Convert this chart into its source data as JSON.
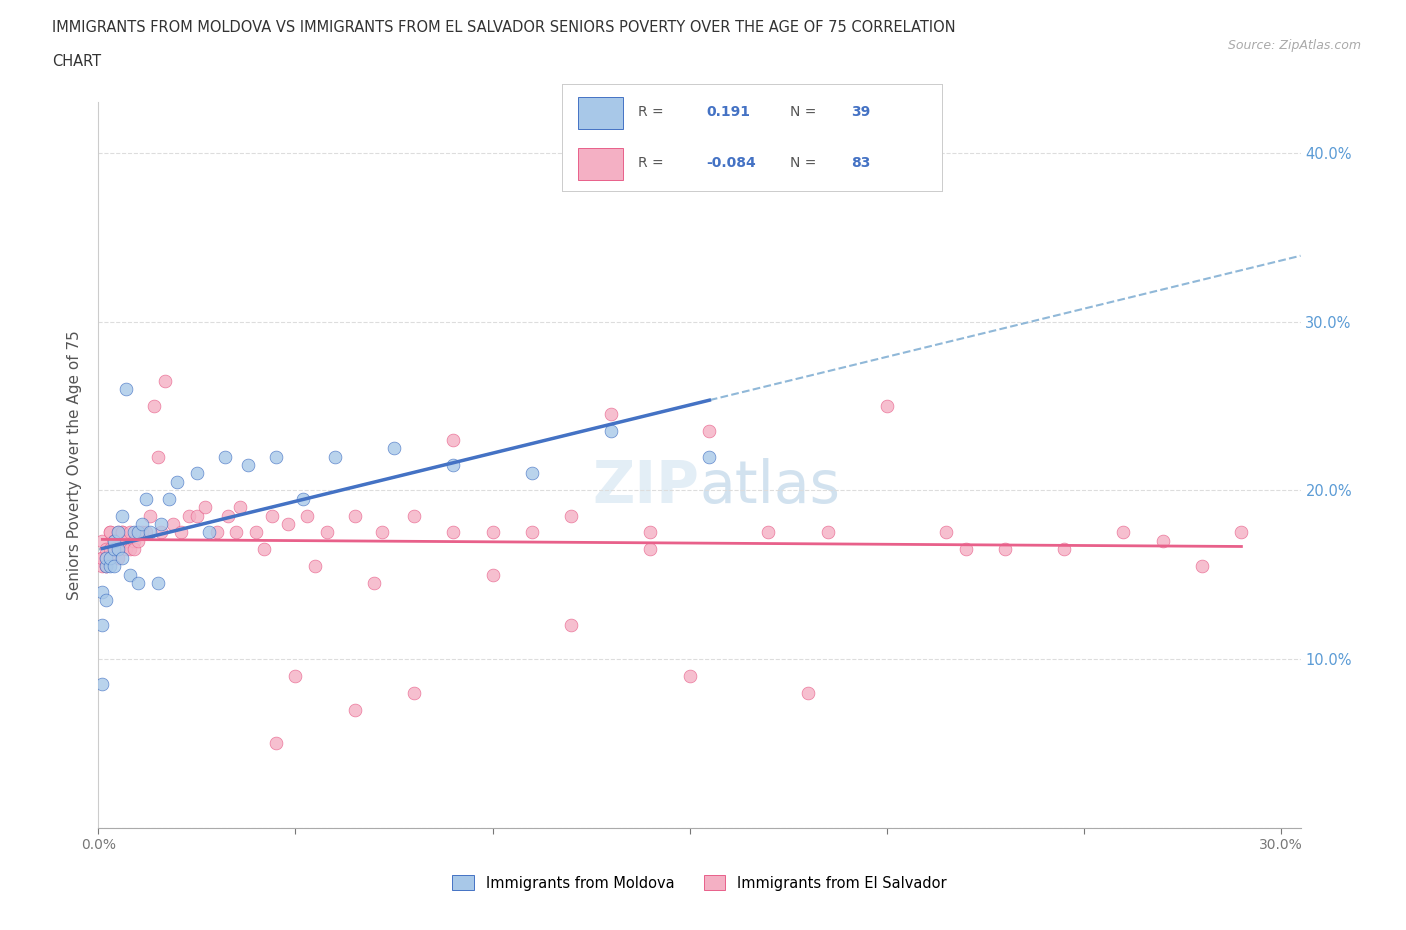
{
  "title_line1": "IMMIGRANTS FROM MOLDOVA VS IMMIGRANTS FROM EL SALVADOR SENIORS POVERTY OVER THE AGE OF 75 CORRELATION",
  "title_line2": "CHART",
  "source": "Source: ZipAtlas.com",
  "ylabel": "Seniors Poverty Over the Age of 75",
  "r_moldova": 0.191,
  "n_moldova": 39,
  "r_elsalvador": -0.084,
  "n_elsalvador": 83,
  "xlim": [
    0.0,
    0.305
  ],
  "ylim": [
    0.0,
    0.43
  ],
  "color_moldova": "#a8c8e8",
  "color_elsalvador": "#f4b0c4",
  "line_color_moldova": "#4472c4",
  "line_color_elsalvador": "#e8608a",
  "dashed_line_color": "#90b8d8",
  "moldova_x": [
    0.001,
    0.001,
    0.001,
    0.002,
    0.002,
    0.002,
    0.003,
    0.003,
    0.004,
    0.004,
    0.004,
    0.005,
    0.005,
    0.006,
    0.006,
    0.007,
    0.008,
    0.009,
    0.01,
    0.01,
    0.011,
    0.012,
    0.013,
    0.015,
    0.016,
    0.018,
    0.02,
    0.025,
    0.028,
    0.032,
    0.038,
    0.045,
    0.052,
    0.06,
    0.075,
    0.09,
    0.11,
    0.13,
    0.155
  ],
  "moldova_y": [
    0.12,
    0.085,
    0.14,
    0.155,
    0.16,
    0.135,
    0.155,
    0.16,
    0.165,
    0.155,
    0.17,
    0.175,
    0.165,
    0.185,
    0.16,
    0.26,
    0.15,
    0.175,
    0.145,
    0.175,
    0.18,
    0.195,
    0.175,
    0.145,
    0.18,
    0.195,
    0.205,
    0.21,
    0.175,
    0.22,
    0.215,
    0.22,
    0.195,
    0.22,
    0.225,
    0.215,
    0.21,
    0.235,
    0.22
  ],
  "elsalvador_x": [
    0.001,
    0.001,
    0.001,
    0.001,
    0.002,
    0.002,
    0.002,
    0.002,
    0.003,
    0.003,
    0.003,
    0.004,
    0.004,
    0.004,
    0.005,
    0.005,
    0.005,
    0.006,
    0.006,
    0.007,
    0.007,
    0.007,
    0.008,
    0.008,
    0.009,
    0.009,
    0.01,
    0.01,
    0.011,
    0.012,
    0.013,
    0.014,
    0.015,
    0.016,
    0.017,
    0.019,
    0.021,
    0.023,
    0.025,
    0.027,
    0.03,
    0.033,
    0.036,
    0.04,
    0.044,
    0.048,
    0.053,
    0.058,
    0.065,
    0.072,
    0.08,
    0.09,
    0.1,
    0.11,
    0.12,
    0.13,
    0.14,
    0.155,
    0.17,
    0.185,
    0.2,
    0.215,
    0.23,
    0.245,
    0.26,
    0.27,
    0.28,
    0.29,
    0.12,
    0.15,
    0.18,
    0.22,
    0.05,
    0.07,
    0.09,
    0.035,
    0.042,
    0.055,
    0.08,
    0.1,
    0.14,
    0.065,
    0.045
  ],
  "elsalvador_y": [
    0.16,
    0.155,
    0.17,
    0.16,
    0.155,
    0.165,
    0.16,
    0.155,
    0.175,
    0.175,
    0.165,
    0.17,
    0.165,
    0.17,
    0.175,
    0.165,
    0.16,
    0.175,
    0.175,
    0.17,
    0.165,
    0.17,
    0.175,
    0.165,
    0.17,
    0.165,
    0.175,
    0.17,
    0.175,
    0.175,
    0.185,
    0.25,
    0.22,
    0.175,
    0.265,
    0.18,
    0.175,
    0.185,
    0.185,
    0.19,
    0.175,
    0.185,
    0.19,
    0.175,
    0.185,
    0.18,
    0.185,
    0.175,
    0.185,
    0.175,
    0.185,
    0.23,
    0.175,
    0.175,
    0.185,
    0.245,
    0.175,
    0.235,
    0.175,
    0.175,
    0.25,
    0.175,
    0.165,
    0.165,
    0.175,
    0.17,
    0.155,
    0.175,
    0.12,
    0.09,
    0.08,
    0.165,
    0.09,
    0.145,
    0.175,
    0.175,
    0.165,
    0.155,
    0.08,
    0.15,
    0.165,
    0.07,
    0.05
  ],
  "xtick_labels_show": [
    true,
    false,
    false,
    false,
    false,
    false,
    true
  ],
  "xtick_vals": [
    0.0,
    0.05,
    0.1,
    0.15,
    0.2,
    0.25,
    0.3
  ],
  "ytick_vals": [
    0.0,
    0.1,
    0.2,
    0.3,
    0.4
  ],
  "bg_color": "#ffffff",
  "grid_color": "#dddddd",
  "title_color": "#333333",
  "ylabel_color": "#555555",
  "ytick_right_color": "#5b9bd5",
  "xtick_color": "#777777"
}
